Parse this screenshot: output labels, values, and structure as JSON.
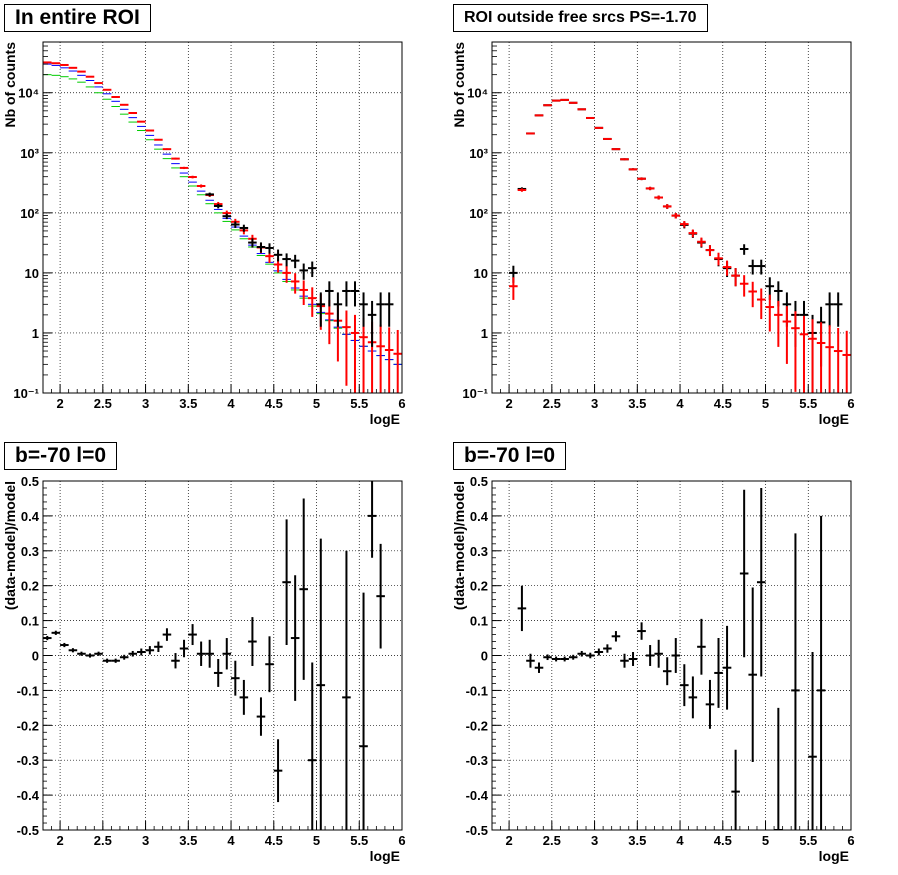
{
  "chart_data": [
    {
      "type": "scatter",
      "title": "In entire ROI",
      "xlabel": "logE",
      "ylabel": "Nb of counts",
      "log_y": true,
      "xlim": [
        1.8,
        6.0
      ],
      "ylim": [
        0.1,
        70000
      ],
      "x_ticks": [
        "2",
        "2.5",
        "3",
        "3.5",
        "4",
        "4.5",
        "5",
        "5.5",
        "6"
      ],
      "x_tick_values": [
        2,
        2.5,
        3,
        3.5,
        4,
        4.5,
        5,
        5.5,
        6
      ],
      "y_ticks": [
        "10⁻¹",
        "1",
        "10",
        "10²",
        "10³",
        "10⁴"
      ],
      "y_tick_values": [
        0.1,
        1,
        10,
        100,
        1000,
        10000
      ],
      "grid": true,
      "series": [
        {
          "color": "#00cc00",
          "style": "step",
          "x": [
            1.85,
            1.95,
            2.05,
            2.15,
            2.25,
            2.35,
            2.45,
            2.55,
            2.65,
            2.75,
            2.85,
            2.95,
            3.05,
            3.15,
            3.25,
            3.35,
            3.45,
            3.55,
            3.65,
            3.75,
            3.85,
            3.95,
            4.05,
            4.15,
            4.25,
            4.35,
            4.45,
            4.55,
            4.65,
            4.75,
            4.85,
            4.95,
            5.05,
            5.15,
            5.25,
            5.35,
            5.45,
            5.55,
            5.65,
            5.75,
            5.85,
            5.95
          ],
          "y": [
            20000,
            19500,
            18500,
            17000,
            15000,
            12500,
            10000,
            7800,
            5900,
            4400,
            3250,
            2350,
            1650,
            1150,
            800,
            560,
            400,
            280,
            200,
            142,
            100,
            72,
            52,
            37,
            27,
            19.5,
            14,
            10,
            7.2,
            5.2,
            3.8,
            2.8,
            2.1,
            1.6,
            1.2,
            0.95,
            0.75,
            0.6,
            0.5,
            0.42,
            0.36,
            0.3
          ]
        },
        {
          "color": "#0000ff",
          "style": "step",
          "x": [
            1.85,
            1.95,
            2.05,
            2.15,
            2.25,
            2.35,
            2.45,
            2.55,
            2.65,
            2.75,
            2.85,
            2.95,
            3.05,
            3.15,
            3.25,
            3.35,
            3.45,
            3.55,
            3.65,
            3.75,
            3.85,
            3.95,
            4.05,
            4.15,
            4.25,
            4.35,
            4.45,
            4.55,
            4.65,
            4.75,
            4.85,
            4.95,
            5.05,
            5.15,
            5.25,
            5.35,
            5.45,
            5.55,
            5.65,
            5.75,
            5.85,
            5.95
          ],
          "y": [
            30000,
            28500,
            26000,
            23000,
            19500,
            16000,
            12500,
            9600,
            7200,
            5300,
            3850,
            2750,
            1950,
            1350,
            950,
            660,
            460,
            325,
            230,
            162,
            114,
            81,
            58,
            41,
            29,
            21,
            15,
            10.8,
            7.8,
            5.6,
            4.1,
            3.0,
            2.2,
            1.65,
            1.25,
            0.95,
            0.75,
            0.6,
            0.5,
            0.42,
            0.36,
            0.3
          ]
        },
        {
          "color": "#ff0000",
          "style": "error",
          "x": [
            1.85,
            1.95,
            2.05,
            2.15,
            2.25,
            2.35,
            2.45,
            2.55,
            2.65,
            2.75,
            2.85,
            2.95,
            3.05,
            3.15,
            3.25,
            3.35,
            3.45,
            3.55,
            3.65,
            3.75,
            3.85,
            3.95,
            4.05,
            4.15,
            4.25,
            4.35,
            4.45,
            4.55,
            4.65,
            4.75,
            4.85,
            4.95,
            5.05,
            5.15,
            5.25,
            5.35,
            5.45,
            5.55,
            5.65,
            5.75,
            5.85,
            5.95
          ],
          "y": [
            32000,
            31000,
            29000,
            26000,
            22500,
            18500,
            14500,
            11200,
            8500,
            6300,
            4600,
            3300,
            2350,
            1650,
            1150,
            800,
            560,
            395,
            280,
            198,
            140,
            99,
            71,
            51,
            37,
            26.5,
            19,
            13.8,
            10,
            7.2,
            5.2,
            3.8,
            2.8,
            2.1,
            1.6,
            1.25,
            1.0,
            0.85,
            0.7,
            0.6,
            0.52,
            0.45
          ]
        },
        {
          "color": "#000000",
          "style": "error",
          "x": [
            3.75,
            3.85,
            3.95,
            4.05,
            4.15,
            4.25,
            4.35,
            4.45,
            4.55,
            4.65,
            4.75,
            4.85,
            4.95,
            5.05,
            5.15,
            5.25,
            5.35,
            5.45,
            5.55,
            5.65,
            5.75,
            5.85
          ],
          "y": [
            203,
            130,
            88,
            64,
            56,
            32,
            27,
            26,
            20,
            17,
            16,
            11,
            12,
            3,
            5,
            3,
            5,
            5,
            3,
            2,
            3,
            3
          ]
        }
      ]
    },
    {
      "type": "scatter",
      "title": "ROI outside free srcs PS=-1.70",
      "xlabel": "logE",
      "ylabel": "Nb of counts",
      "log_y": true,
      "xlim": [
        1.8,
        6.0
      ],
      "ylim": [
        0.1,
        70000
      ],
      "x_ticks": [
        "2",
        "2.5",
        "3",
        "3.5",
        "4",
        "4.5",
        "5",
        "5.5",
        "6"
      ],
      "x_tick_values": [
        2,
        2.5,
        3,
        3.5,
        4,
        4.5,
        5,
        5.5,
        6
      ],
      "y_ticks": [
        "10⁻¹",
        "1",
        "10",
        "10²",
        "10³",
        "10⁴"
      ],
      "y_tick_values": [
        0.1,
        1,
        10,
        100,
        1000,
        10000
      ],
      "grid": true,
      "series": [
        {
          "color": "#000000",
          "style": "error",
          "x": [
            2.05,
            2.15,
            2.25,
            2.35,
            2.45,
            2.55,
            2.65,
            2.75,
            2.85,
            2.95,
            3.05,
            3.15,
            3.25,
            3.35,
            3.45,
            3.55,
            3.65,
            3.75,
            3.85,
            3.95,
            4.05,
            4.15,
            4.25,
            4.35,
            4.45,
            4.55,
            4.65,
            4.75,
            4.85,
            4.95,
            5.05,
            5.15,
            5.25,
            5.35,
            5.45,
            5.55,
            5.65,
            5.75,
            5.85
          ],
          "y": [
            10,
            250,
            2100,
            4200,
            6200,
            7400,
            7600,
            6800,
            5300,
            3800,
            2600,
            1700,
            1150,
            780,
            530,
            370,
            255,
            180,
            128,
            90,
            63,
            45,
            32,
            24,
            17,
            12,
            9,
            25,
            13,
            13,
            6,
            5,
            3,
            2,
            2,
            1,
            1.5,
            3,
            3
          ]
        },
        {
          "color": "#ff0000",
          "style": "error",
          "x": [
            2.05,
            2.15,
            2.25,
            2.35,
            2.45,
            2.55,
            2.65,
            2.75,
            2.85,
            2.95,
            3.05,
            3.15,
            3.25,
            3.35,
            3.45,
            3.55,
            3.65,
            3.75,
            3.85,
            3.95,
            4.05,
            4.15,
            4.25,
            4.35,
            4.45,
            4.55,
            4.65,
            4.75,
            4.85,
            4.95,
            5.05,
            5.15,
            5.25,
            5.35,
            5.45,
            5.55,
            5.65,
            5.75,
            5.85,
            5.95
          ],
          "y": [
            6,
            240,
            2100,
            4200,
            6200,
            7400,
            7600,
            6800,
            5300,
            3800,
            2600,
            1700,
            1150,
            780,
            530,
            370,
            255,
            180,
            128,
            90,
            65,
            46,
            33,
            24,
            17.5,
            12.5,
            9,
            6.6,
            4.9,
            3.6,
            2.7,
            2.0,
            1.55,
            1.2,
            0.95,
            0.8,
            0.68,
            0.58,
            0.5,
            0.43
          ]
        }
      ]
    },
    {
      "type": "scatter",
      "title": "b=-70 l=0",
      "xlabel": "logE",
      "ylabel": "(data-model)/model",
      "log_y": false,
      "xlim": [
        1.8,
        6.0
      ],
      "ylim": [
        -0.5,
        0.5
      ],
      "x_ticks": [
        "2",
        "2.5",
        "3",
        "3.5",
        "4",
        "4.5",
        "5",
        "5.5",
        "6"
      ],
      "x_tick_values": [
        2,
        2.5,
        3,
        3.5,
        4,
        4.5,
        5,
        5.5,
        6
      ],
      "y_ticks": [
        "-0.5",
        "-0.4",
        "-0.3",
        "-0.2",
        "-0.1",
        "0",
        "0.1",
        "0.2",
        "0.3",
        "0.4",
        "0.5"
      ],
      "y_tick_values": [
        -0.5,
        -0.4,
        -0.3,
        -0.2,
        -0.1,
        0,
        0.1,
        0.2,
        0.3,
        0.4,
        0.5
      ],
      "grid": true,
      "series": [
        {
          "color": "#000000",
          "style": "error",
          "x": [
            1.85,
            1.95,
            2.05,
            2.15,
            2.25,
            2.35,
            2.45,
            2.55,
            2.65,
            2.75,
            2.85,
            2.95,
            3.05,
            3.15,
            3.25,
            3.35,
            3.45,
            3.55,
            3.65,
            3.75,
            3.85,
            3.95,
            4.05,
            4.15,
            4.25,
            4.35,
            4.45,
            4.55,
            4.65,
            4.75,
            4.85,
            4.95,
            5.05,
            5.35,
            5.55,
            5.65,
            5.75
          ],
          "y": [
            0.05,
            0.065,
            0.03,
            0.015,
            0.005,
            0,
            0.005,
            -0.015,
            -0.015,
            -0.005,
            0.005,
            0.01,
            0.015,
            0.025,
            0.06,
            -0.015,
            0.02,
            0.06,
            0.005,
            0.005,
            -0.05,
            0.005,
            -0.065,
            -0.12,
            0.04,
            -0.175,
            -0.025,
            -0.33,
            0.21,
            0.05,
            0.19,
            -0.3,
            -0.085,
            -0.12,
            -0.26,
            0.4,
            0.17
          ],
          "err": [
            0.006,
            0.006,
            0.006,
            0.006,
            0.006,
            0.006,
            0.006,
            0.006,
            0.006,
            0.007,
            0.008,
            0.01,
            0.012,
            0.015,
            0.018,
            0.022,
            0.025,
            0.03,
            0.035,
            0.04,
            0.04,
            0.045,
            0.05,
            0.05,
            0.07,
            0.055,
            0.08,
            0.09,
            0.18,
            0.18,
            0.26,
            0.28,
            0.42,
            0.42,
            0.44,
            0.12,
            0.15
          ]
        }
      ]
    },
    {
      "type": "scatter",
      "title": "b=-70 l=0",
      "xlabel": "logE",
      "ylabel": "(data-model)/model",
      "log_y": false,
      "xlim": [
        1.8,
        6.0
      ],
      "ylim": [
        -0.5,
        0.5
      ],
      "x_ticks": [
        "2",
        "2.5",
        "3",
        "3.5",
        "4",
        "4.5",
        "5",
        "5.5",
        "6"
      ],
      "x_tick_values": [
        2,
        2.5,
        3,
        3.5,
        4,
        4.5,
        5,
        5.5,
        6
      ],
      "y_ticks": [
        "-0.5",
        "-0.4",
        "-0.3",
        "-0.2",
        "-0.1",
        "0",
        "0.1",
        "0.2",
        "0.3",
        "0.4",
        "0.5"
      ],
      "y_tick_values": [
        -0.5,
        -0.4,
        -0.3,
        -0.2,
        -0.1,
        0,
        0.1,
        0.2,
        0.3,
        0.4,
        0.5
      ],
      "grid": true,
      "series": [
        {
          "color": "#000000",
          "style": "error",
          "x": [
            2.15,
            2.25,
            2.35,
            2.45,
            2.55,
            2.65,
            2.75,
            2.85,
            2.95,
            3.05,
            3.15,
            3.25,
            3.35,
            3.45,
            3.55,
            3.65,
            3.75,
            3.85,
            3.95,
            4.05,
            4.15,
            4.25,
            4.35,
            4.45,
            4.55,
            4.65,
            4.75,
            4.85,
            4.95,
            5.15,
            5.35,
            5.55,
            5.65
          ],
          "y": [
            0.135,
            -0.015,
            -0.035,
            -0.005,
            -0.01,
            -0.01,
            -0.005,
            0.005,
            0,
            0.01,
            0.02,
            0.055,
            -0.015,
            -0.01,
            0.07,
            0,
            0.005,
            -0.045,
            0,
            -0.085,
            -0.12,
            0.025,
            -0.14,
            -0.05,
            -0.035,
            -0.39,
            0.235,
            -0.055,
            0.21,
            -0.5,
            -0.1,
            -0.29,
            -0.1
          ],
          "err": [
            0.065,
            0.02,
            0.015,
            0.008,
            0.007,
            0.007,
            0.007,
            0.008,
            0.008,
            0.01,
            0.012,
            0.015,
            0.02,
            0.02,
            0.025,
            0.03,
            0.04,
            0.04,
            0.05,
            0.06,
            0.06,
            0.08,
            0.07,
            0.1,
            0.12,
            0.12,
            0.24,
            0.25,
            0.27,
            0.35,
            0.45,
            0.3,
            0.5
          ]
        }
      ]
    }
  ]
}
